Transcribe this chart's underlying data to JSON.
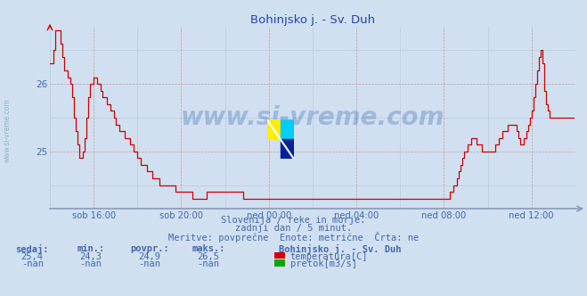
{
  "title": "Bohinjsko j. - Sv. Duh",
  "bg_color": "#d0e0f0",
  "plot_bg_color": "#d0e0f0",
  "line_color": "#cc0000",
  "axis_color": "#8899bb",
  "grid_color_major": "#cc9999",
  "grid_color_minor": "#aabbcc",
  "text_color": "#4466aa",
  "title_color": "#2244aa",
  "ylim": [
    24.15,
    26.85
  ],
  "yticks": [
    25,
    26
  ],
  "xtick_labels": [
    "sob 16:00",
    "sob 20:00",
    "ned 00:00",
    "ned 04:00",
    "ned 08:00",
    "ned 12:00"
  ],
  "xtick_positions": [
    24,
    72,
    120,
    168,
    216,
    264
  ],
  "n_points": 288,
  "subtitle1": "Slovenija / reke in morje.",
  "subtitle2": "zadnji dan / 5 minut.",
  "subtitle3": "Meritve: povprečne  Enote: metrične  Črta: ne",
  "stat_headers": [
    "sedaj:",
    "min.:",
    "povpr.:",
    "maks.:"
  ],
  "stat_values_temp": [
    "25,4",
    "24,3",
    "24,9",
    "26,5"
  ],
  "stat_values_pretok": [
    "-nan",
    "-nan",
    "-nan",
    "-nan"
  ],
  "legend_label1": "temperatura[C]",
  "legend_label2": "pretok[m3/s]",
  "legend_color1": "#cc0000",
  "legend_color2": "#00aa00",
  "station_label": "Bohinjsko j. - Sv. Duh",
  "watermark": "www.si-vreme.com",
  "watermark_color": "#2255aa",
  "watermark_alpha": 0.28,
  "left_label": "www.si-vreme.com",
  "temp_data": [
    26.3,
    26.3,
    26.5,
    26.8,
    26.8,
    26.8,
    26.6,
    26.4,
    26.2,
    26.2,
    26.1,
    26.0,
    25.8,
    25.5,
    25.3,
    25.1,
    24.9,
    24.9,
    25.0,
    25.2,
    25.5,
    25.8,
    26.0,
    26.0,
    26.1,
    26.1,
    26.0,
    26.0,
    25.9,
    25.8,
    25.8,
    25.7,
    25.7,
    25.6,
    25.6,
    25.5,
    25.4,
    25.4,
    25.3,
    25.3,
    25.3,
    25.2,
    25.2,
    25.2,
    25.1,
    25.1,
    25.0,
    25.0,
    24.9,
    24.9,
    24.8,
    24.8,
    24.8,
    24.7,
    24.7,
    24.7,
    24.6,
    24.6,
    24.6,
    24.6,
    24.5,
    24.5,
    24.5,
    24.5,
    24.5,
    24.5,
    24.5,
    24.5,
    24.5,
    24.4,
    24.4,
    24.4,
    24.4,
    24.4,
    24.4,
    24.4,
    24.4,
    24.4,
    24.3,
    24.3,
    24.3,
    24.3,
    24.3,
    24.3,
    24.3,
    24.3,
    24.4,
    24.4,
    24.4,
    24.4,
    24.4,
    24.4,
    24.4,
    24.4,
    24.4,
    24.4,
    24.4,
    24.4,
    24.4,
    24.4,
    24.4,
    24.4,
    24.4,
    24.4,
    24.4,
    24.4,
    24.3,
    24.3,
    24.3,
    24.3,
    24.3,
    24.3,
    24.3,
    24.3,
    24.3,
    24.3,
    24.3,
    24.3,
    24.3,
    24.3,
    24.3,
    24.3,
    24.3,
    24.3,
    24.3,
    24.3,
    24.3,
    24.3,
    24.3,
    24.3,
    24.3,
    24.3,
    24.3,
    24.3,
    24.3,
    24.3,
    24.3,
    24.3,
    24.3,
    24.3,
    24.3,
    24.3,
    24.3,
    24.3,
    24.3,
    24.3,
    24.3,
    24.3,
    24.3,
    24.3,
    24.3,
    24.3,
    24.3,
    24.3,
    24.3,
    24.3,
    24.3,
    24.3,
    24.3,
    24.3,
    24.3,
    24.3,
    24.3,
    24.3,
    24.3,
    24.3,
    24.3,
    24.3,
    24.3,
    24.3,
    24.3,
    24.3,
    24.3,
    24.3,
    24.3,
    24.3,
    24.3,
    24.3,
    24.3,
    24.3,
    24.3,
    24.3,
    24.3,
    24.3,
    24.3,
    24.3,
    24.3,
    24.3,
    24.3,
    24.3,
    24.3,
    24.3,
    24.3,
    24.3,
    24.3,
    24.3,
    24.3,
    24.3,
    24.3,
    24.3,
    24.3,
    24.3,
    24.3,
    24.3,
    24.3,
    24.3,
    24.3,
    24.3,
    24.3,
    24.3,
    24.3,
    24.3,
    24.3,
    24.3,
    24.3,
    24.3,
    24.3,
    24.3,
    24.3,
    24.4,
    24.4,
    24.5,
    24.5,
    24.6,
    24.7,
    24.8,
    24.9,
    25.0,
    25.0,
    25.1,
    25.1,
    25.2,
    25.2,
    25.2,
    25.1,
    25.1,
    25.1,
    25.0,
    25.0,
    25.0,
    25.0,
    25.0,
    25.0,
    25.0,
    25.1,
    25.1,
    25.2,
    25.2,
    25.3,
    25.3,
    25.3,
    25.4,
    25.4,
    25.4,
    25.4,
    25.4,
    25.3,
    25.2,
    25.1,
    25.1,
    25.2,
    25.3,
    25.4,
    25.5,
    25.6,
    25.8,
    26.0,
    26.2,
    26.4,
    26.5,
    26.3,
    25.9,
    25.7,
    25.6,
    25.5,
    25.5,
    25.5,
    25.5,
    25.5,
    25.5
  ]
}
